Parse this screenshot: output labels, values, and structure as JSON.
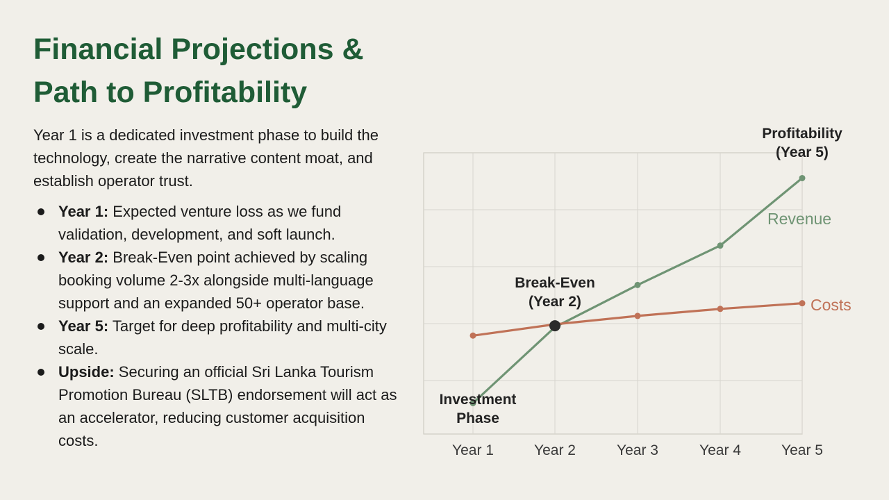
{
  "slide": {
    "title_line1": "Financial Projections &",
    "title_line2": "Path to Profitability",
    "intro": "Year 1 is a dedicated investment phase to build the technology, create the narrative content moat, and establish operator trust.",
    "bullets": [
      {
        "label": "Year 1:",
        "text": " Expected venture loss as we fund validation, development, and soft launch."
      },
      {
        "label": "Year 2:",
        "text": " Break-Even point achieved by scaling booking volume 2-3x alongside multi-language support and an expanded 50+ operator base."
      },
      {
        "label": "Year 5:",
        "text": " Target for deep profitability and multi-city scale."
      },
      {
        "label": "Upside:",
        "text": " Securing an official Sri Lanka Tourism Promotion Bureau (SLTB) endorsement will act as an accelerator, reducing customer acquisition costs."
      }
    ]
  },
  "chart_data": {
    "type": "line",
    "categories": [
      "Year 1",
      "Year 2",
      "Year 3",
      "Year 4",
      "Year 5"
    ],
    "ylim": [
      0,
      100
    ],
    "grid": true,
    "series": [
      {
        "name": "Revenue",
        "values": [
          11,
          38,
          53,
          67,
          91
        ],
        "color": "#6f9474"
      },
      {
        "name": "Costs",
        "values": [
          35,
          39,
          42,
          44.5,
          46.5
        ],
        "color": "#c07257"
      }
    ],
    "annotations": {
      "investment_line1": "Investment",
      "investment_line2": "Phase",
      "breakeven_line1": "Break-Even",
      "breakeven_line2": "(Year 2)",
      "profit_line1": "Profitability",
      "profit_line2": "(Year 5)"
    },
    "breakeven_index": 1
  }
}
